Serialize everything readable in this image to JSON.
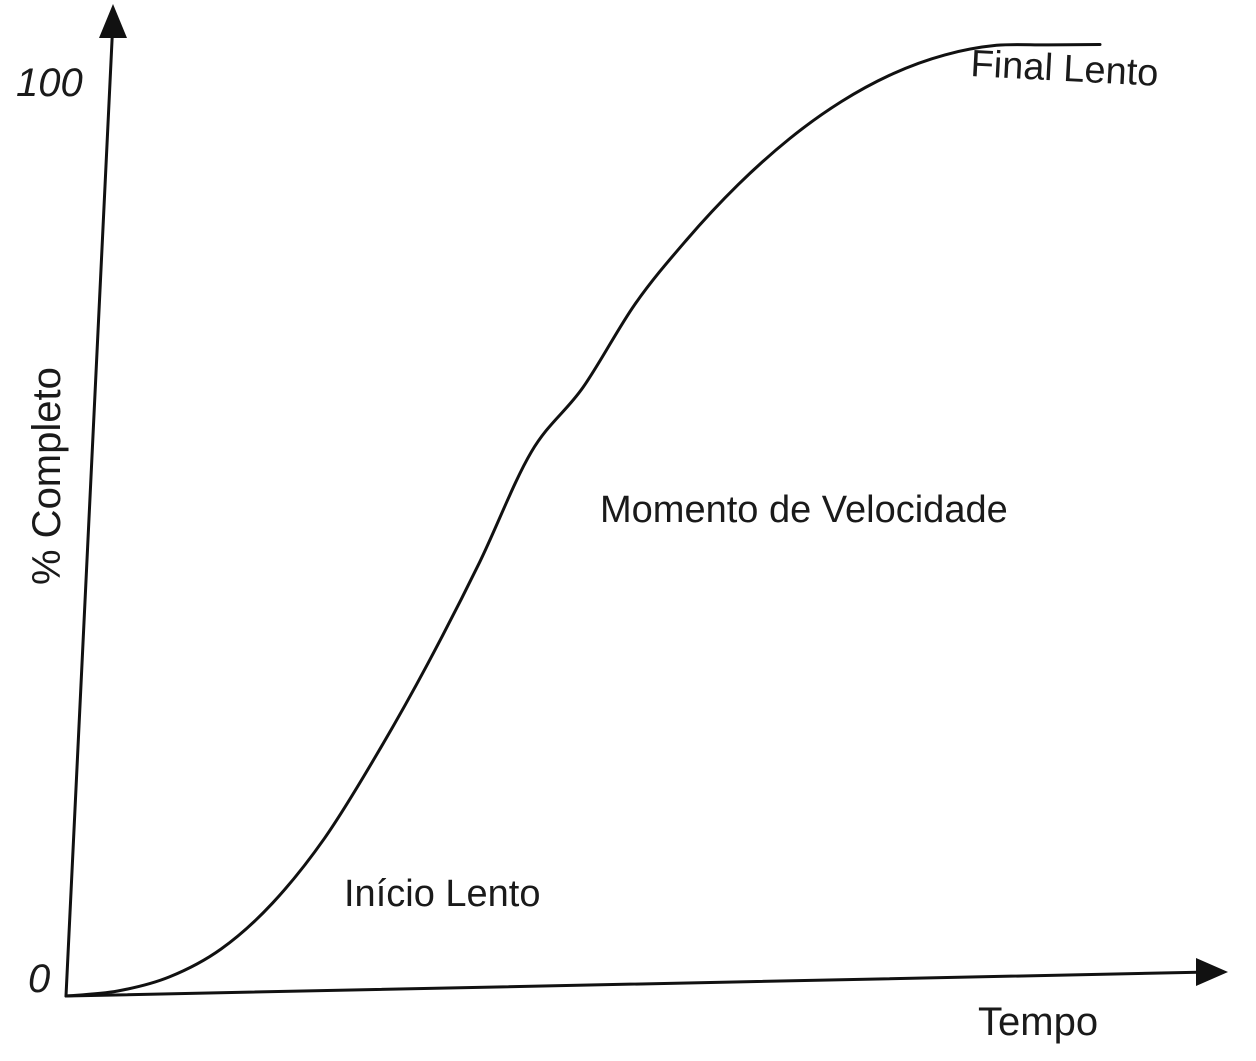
{
  "chart_data": {
    "type": "line",
    "title": "",
    "xlabel": "Tempo",
    "ylabel": "% Completo",
    "ylim": [
      0,
      100
    ],
    "y_ticks": [
      "0",
      "100"
    ],
    "grid": false,
    "legend": "none",
    "series": [
      {
        "x": [
          0,
          0.05,
          0.1,
          0.15,
          0.2,
          0.25,
          0.3,
          0.35,
          0.4,
          0.45,
          0.5,
          0.55,
          0.6,
          0.65,
          0.7,
          0.75,
          0.8,
          0.85,
          0.9,
          0.95,
          1.0
        ],
        "values": [
          0,
          0.5,
          2,
          5,
          10,
          17,
          26,
          36,
          47,
          59,
          66,
          75,
          82,
          88,
          93,
          97,
          100,
          102,
          103,
          103,
          103
        ],
        "color": "#111111"
      }
    ],
    "annotations": [
      {
        "text": "Início Lento",
        "region": "bottom-left"
      },
      {
        "text": "Momento de Velocidade",
        "region": "middle"
      },
      {
        "text": "Final Lento",
        "region": "top-right"
      }
    ]
  }
}
